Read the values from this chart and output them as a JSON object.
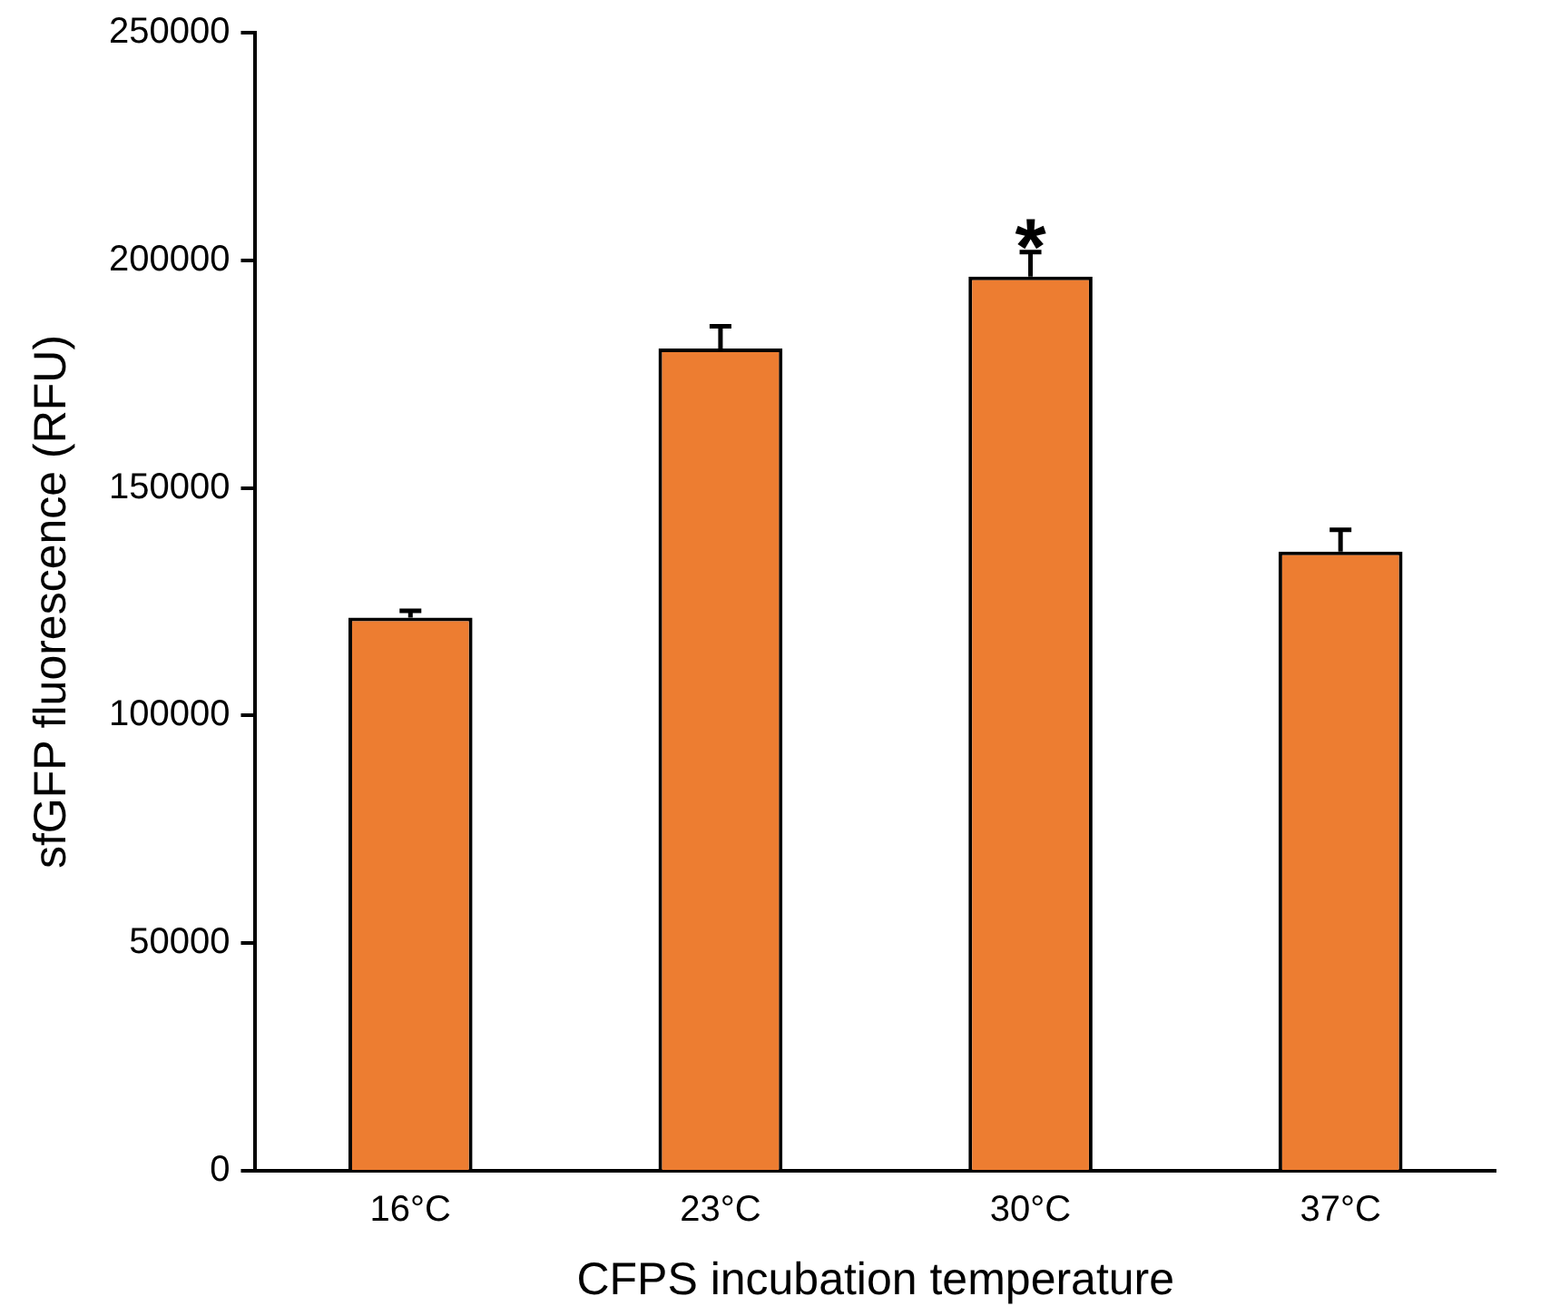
{
  "chart_data": {
    "type": "bar",
    "xlabel": "CFPS incubation temperature",
    "ylabel": "sfGFP fluorescence (RFU)",
    "categories": [
      "16°C",
      "23°C",
      "30°C",
      "37°C"
    ],
    "values": [
      121500,
      180600,
      196400,
      136000
    ],
    "errors": [
      [
        121500,
        123000
      ],
      [
        180600,
        185500
      ],
      [
        196400,
        201800
      ],
      [
        136000,
        140800
      ]
    ],
    "color": "#ed7d31",
    "ylim": [
      0,
      250000
    ],
    "yticks": [
      0,
      50000,
      100000,
      150000,
      200000,
      250000
    ],
    "grid": false,
    "legend": false,
    "annotations": [
      {
        "text": "*",
        "x": "30°C",
        "y": 201800
      }
    ]
  }
}
